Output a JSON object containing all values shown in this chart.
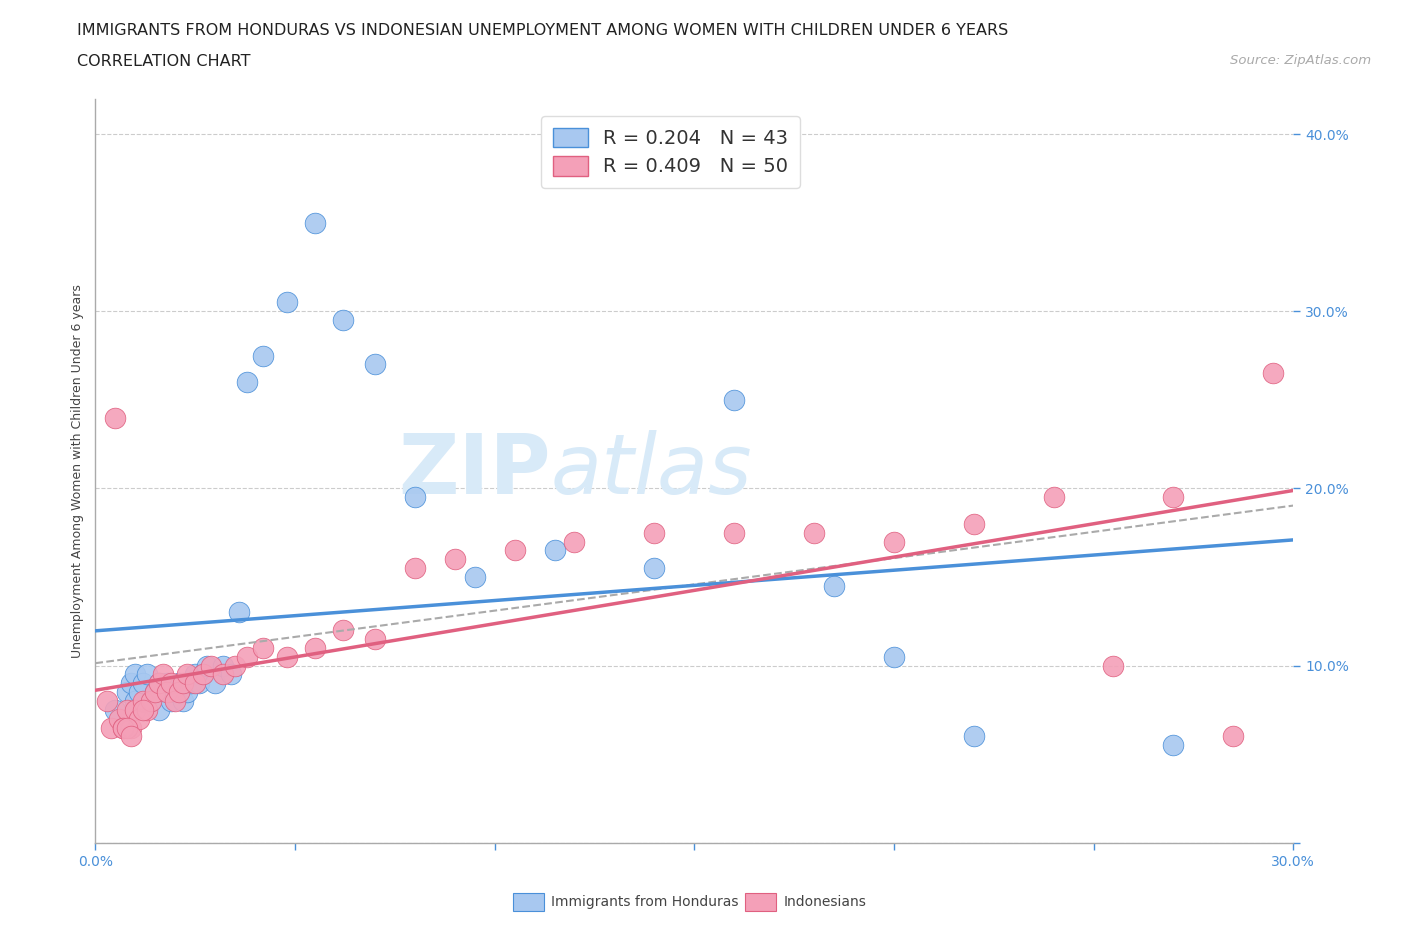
{
  "title_line1": "IMMIGRANTS FROM HONDURAS VS INDONESIAN UNEMPLOYMENT AMONG WOMEN WITH CHILDREN UNDER 6 YEARS",
  "title_line2": "CORRELATION CHART",
  "source_text": "Source: ZipAtlas.com",
  "ylabel": "Unemployment Among Women with Children Under 6 years",
  "xlim": [
    0.0,
    0.3
  ],
  "ylim": [
    0.0,
    0.42
  ],
  "xticks": [
    0.0,
    0.05,
    0.1,
    0.15,
    0.2,
    0.25,
    0.3
  ],
  "yticks": [
    0.0,
    0.1,
    0.2,
    0.3,
    0.4
  ],
  "legend_r1": "R = 0.204",
  "legend_n1": "N = 43",
  "legend_r2": "R = 0.409",
  "legend_n2": "N = 50",
  "color_blue": "#A8C8F0",
  "color_pink": "#F4A0B8",
  "line_color_blue": "#4A90D9",
  "line_color_pink": "#E06080",
  "line_color_dashed": "#AAAAAA",
  "background_color": "#FFFFFF",
  "watermark_color": "#D8EAF8",
  "blue_scatter_x": [
    0.005,
    0.008,
    0.009,
    0.01,
    0.01,
    0.011,
    0.012,
    0.013,
    0.014,
    0.015,
    0.016,
    0.016,
    0.017,
    0.018,
    0.019,
    0.02,
    0.021,
    0.022,
    0.023,
    0.024,
    0.025,
    0.026,
    0.027,
    0.028,
    0.03,
    0.032,
    0.034,
    0.036,
    0.038,
    0.042,
    0.048,
    0.055,
    0.062,
    0.07,
    0.08,
    0.095,
    0.115,
    0.14,
    0.16,
    0.185,
    0.2,
    0.22,
    0.27
  ],
  "blue_scatter_y": [
    0.075,
    0.085,
    0.09,
    0.08,
    0.095,
    0.085,
    0.09,
    0.095,
    0.08,
    0.085,
    0.09,
    0.075,
    0.085,
    0.09,
    0.08,
    0.085,
    0.09,
    0.08,
    0.085,
    0.09,
    0.095,
    0.09,
    0.095,
    0.1,
    0.09,
    0.1,
    0.095,
    0.13,
    0.26,
    0.275,
    0.305,
    0.35,
    0.295,
    0.27,
    0.195,
    0.15,
    0.165,
    0.155,
    0.25,
    0.145,
    0.105,
    0.06,
    0.055
  ],
  "pink_scatter_x": [
    0.004,
    0.006,
    0.007,
    0.008,
    0.009,
    0.01,
    0.011,
    0.012,
    0.013,
    0.014,
    0.015,
    0.016,
    0.017,
    0.018,
    0.019,
    0.02,
    0.021,
    0.022,
    0.023,
    0.025,
    0.027,
    0.029,
    0.032,
    0.035,
    0.038,
    0.042,
    0.048,
    0.055,
    0.062,
    0.07,
    0.08,
    0.09,
    0.105,
    0.12,
    0.14,
    0.16,
    0.18,
    0.2,
    0.22,
    0.24,
    0.255,
    0.27,
    0.285,
    0.295,
    0.003,
    0.005,
    0.007,
    0.008,
    0.009,
    0.012
  ],
  "pink_scatter_y": [
    0.065,
    0.07,
    0.065,
    0.075,
    0.065,
    0.075,
    0.07,
    0.08,
    0.075,
    0.08,
    0.085,
    0.09,
    0.095,
    0.085,
    0.09,
    0.08,
    0.085,
    0.09,
    0.095,
    0.09,
    0.095,
    0.1,
    0.095,
    0.1,
    0.105,
    0.11,
    0.105,
    0.11,
    0.12,
    0.115,
    0.155,
    0.16,
    0.165,
    0.17,
    0.175,
    0.175,
    0.175,
    0.17,
    0.18,
    0.195,
    0.1,
    0.195,
    0.06,
    0.265,
    0.08,
    0.24,
    0.065,
    0.065,
    0.06,
    0.075
  ],
  "title_fontsize": 11.5,
  "subtitle_fontsize": 11.5,
  "source_fontsize": 9.5,
  "axis_label_fontsize": 9,
  "tick_fontsize": 10,
  "legend_fontsize": 14
}
